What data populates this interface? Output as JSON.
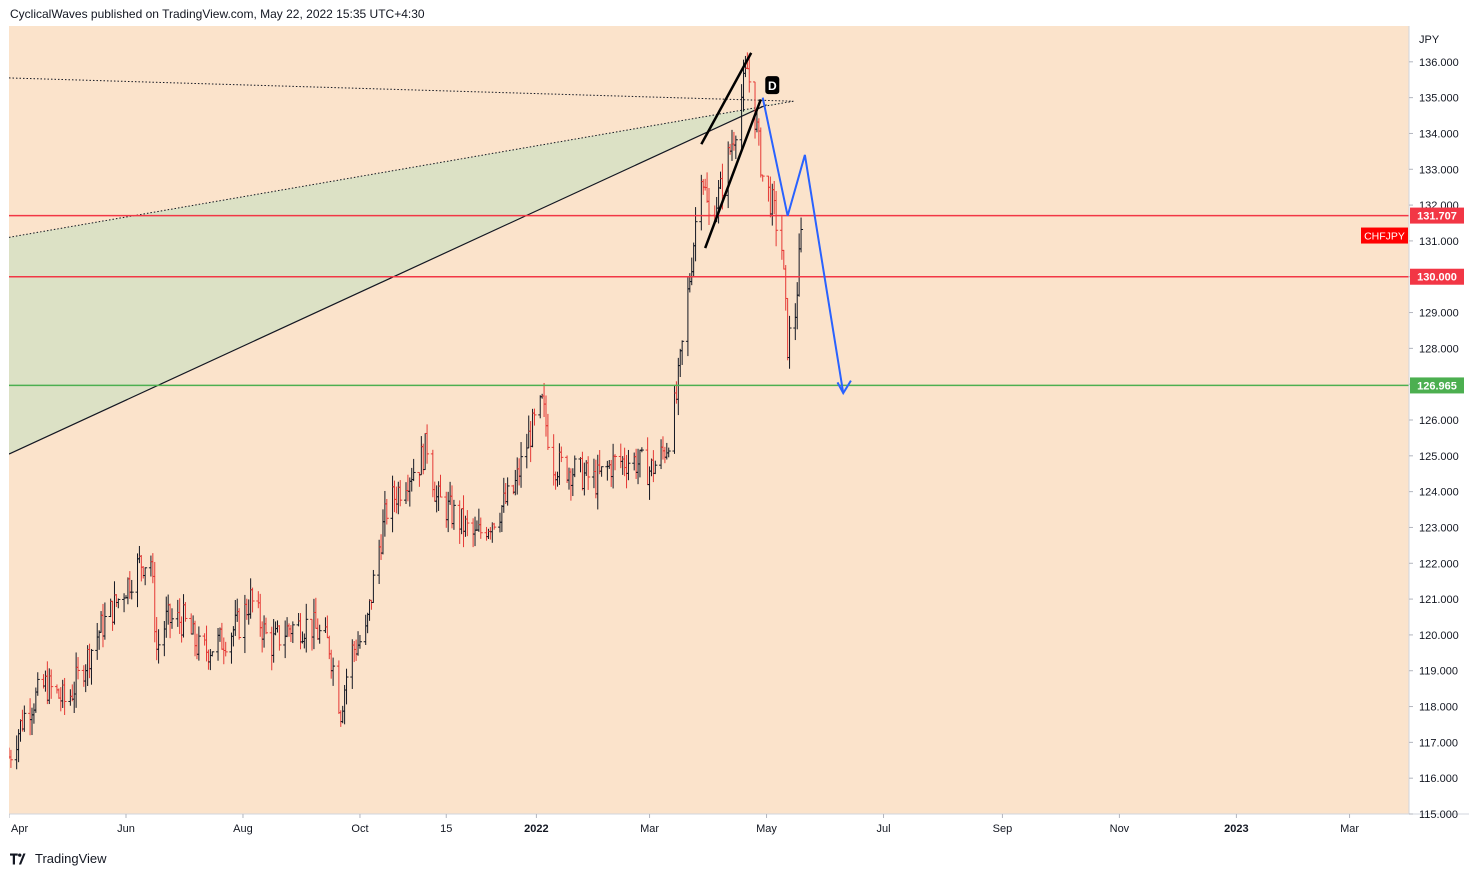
{
  "header": {
    "publisher": "CyclicalWaves published on TradingView.com, May 22, 2022 15:35 UTC+4:30"
  },
  "footer": {
    "brand": "TradingView",
    "logo_icon": "tradingview-logo-icon"
  },
  "colors": {
    "background": "#fbe3cb",
    "candle_up": "#131722",
    "candle_down": "#e53935",
    "resistance": "#f23645",
    "support": "#4caf50",
    "projection": "#2962ff",
    "wedge_fill": "#d8e0c4",
    "symbol_badge": "#ff0000"
  },
  "chart_data": {
    "type": "ohlc",
    "symbol": "CHFJPY",
    "currency": "JPY",
    "y_range": [
      115,
      137
    ],
    "y_ticks": [
      "136.000",
      "135.000",
      "134.000",
      "133.000",
      "132.000",
      "131.000",
      "130.000",
      "129.000",
      "128.000",
      "127.000",
      "126.000",
      "125.000",
      "124.000",
      "123.000",
      "122.000",
      "121.000",
      "120.000",
      "119.000",
      "118.000",
      "117.000",
      "116.000",
      "115.000"
    ],
    "x_range": [
      "2021-04-01",
      "2023-04-01"
    ],
    "x_ticks": [
      {
        "label": "Apr",
        "date": "2021-04-01",
        "bold": false
      },
      {
        "label": "Jun",
        "date": "2021-06-01",
        "bold": false
      },
      {
        "label": "Aug",
        "date": "2021-08-01",
        "bold": false
      },
      {
        "label": "Oct",
        "date": "2021-10-01",
        "bold": false
      },
      {
        "label": "15",
        "date": "2021-11-15",
        "bold": false
      },
      {
        "label": "2022",
        "date": "2022-01-01",
        "bold": true
      },
      {
        "label": "Mar",
        "date": "2022-03-01",
        "bold": false
      },
      {
        "label": "May",
        "date": "2022-05-01",
        "bold": false
      },
      {
        "label": "Jul",
        "date": "2022-07-01",
        "bold": false
      },
      {
        "label": "Sep",
        "date": "2022-09-01",
        "bold": false
      },
      {
        "label": "Nov",
        "date": "2022-11-01",
        "bold": false
      },
      {
        "label": "2023",
        "date": "2023-01-01",
        "bold": true
      },
      {
        "label": "Mar",
        "date": "2023-03-01",
        "bold": false
      }
    ],
    "close_path": [
      [
        "2021-04-01",
        116.6
      ],
      [
        "2021-04-10",
        117.9
      ],
      [
        "2021-04-20",
        118.6
      ],
      [
        "2021-05-01",
        118.1
      ],
      [
        "2021-05-08",
        118.9
      ],
      [
        "2021-05-18",
        120.1
      ],
      [
        "2021-05-28",
        121.0
      ],
      [
        "2021-06-08",
        122.0
      ],
      [
        "2021-06-14",
        122.1
      ],
      [
        "2021-06-17",
        119.6
      ],
      [
        "2021-06-22",
        120.4
      ],
      [
        "2021-07-01",
        120.4
      ],
      [
        "2021-07-10",
        119.5
      ],
      [
        "2021-07-20",
        119.8
      ],
      [
        "2021-07-30",
        120.3
      ],
      [
        "2021-08-05",
        121.0
      ],
      [
        "2021-08-15",
        119.7
      ],
      [
        "2021-08-25",
        120.2
      ],
      [
        "2021-09-05",
        120.3
      ],
      [
        "2021-09-15",
        119.7
      ],
      [
        "2021-09-21",
        117.9
      ],
      [
        "2021-09-26",
        119.5
      ],
      [
        "2021-10-04",
        120.0
      ],
      [
        "2021-10-10",
        122.2
      ],
      [
        "2021-10-15",
        123.5
      ],
      [
        "2021-10-25",
        124.4
      ],
      [
        "2021-11-01",
        124.8
      ],
      [
        "2021-11-05",
        125.3
      ],
      [
        "2021-11-10",
        123.8
      ],
      [
        "2021-11-20",
        123.3
      ],
      [
        "2021-11-30",
        122.7
      ],
      [
        "2021-12-10",
        123.3
      ],
      [
        "2021-12-20",
        124.0
      ],
      [
        "2021-12-28",
        125.5
      ],
      [
        "2022-01-04",
        126.4
      ],
      [
        "2022-01-10",
        124.8
      ],
      [
        "2022-01-20",
        124.6
      ],
      [
        "2022-02-01",
        124.3
      ],
      [
        "2022-02-10",
        124.8
      ],
      [
        "2022-02-20",
        124.9
      ],
      [
        "2022-03-01",
        124.6
      ],
      [
        "2022-03-05",
        124.8
      ],
      [
        "2022-03-10",
        125.3
      ],
      [
        "2022-03-15",
        126.6
      ],
      [
        "2022-03-20",
        129.0
      ],
      [
        "2022-03-24",
        131.0
      ],
      [
        "2022-03-28",
        133.1
      ],
      [
        "2022-04-01",
        131.6
      ],
      [
        "2022-04-07",
        132.4
      ],
      [
        "2022-04-14",
        134.0
      ],
      [
        "2022-04-21",
        135.8
      ],
      [
        "2022-04-25",
        134.5
      ],
      [
        "2022-04-29",
        132.8
      ],
      [
        "2022-05-04",
        132.0
      ],
      [
        "2022-05-09",
        130.8
      ],
      [
        "2022-05-12",
        128.1
      ],
      [
        "2022-05-16",
        129.0
      ],
      [
        "2022-05-19",
        131.1
      ]
    ],
    "price_lines": [
      {
        "name": "resistance-upper",
        "value": 131.707,
        "label": "131.707",
        "color": "#f23645"
      },
      {
        "name": "resistance-lower",
        "value": 130.0,
        "label": "130.000",
        "color": "#f23645"
      },
      {
        "name": "support",
        "value": 126.965,
        "label": "126.965",
        "color": "#4caf50"
      }
    ],
    "symbol_label": {
      "text": "CHFJPY",
      "value": 131.15
    },
    "pattern_label": {
      "text": "D",
      "date": "2022-05-04",
      "value": 135.35
    },
    "wedge": {
      "lower_line": [
        [
          "2021-04-01",
          125.05
        ],
        [
          "2022-05-01",
          134.8
        ]
      ],
      "upper_line": [
        [
          "2021-04-01",
          131.1
        ],
        [
          "2022-05-15",
          134.9
        ]
      ],
      "top_line": [
        [
          "2021-04-01",
          135.55
        ],
        [
          "2022-05-15",
          134.9
        ]
      ]
    },
    "flag": [
      [
        [
          "2022-03-28",
          133.7
        ],
        [
          "2022-04-23",
          136.25
        ]
      ],
      [
        [
          "2022-03-30",
          130.8
        ],
        [
          "2022-04-28",
          134.95
        ]
      ]
    ],
    "projection": [
      [
        "2022-04-29",
        135.0
      ],
      [
        "2022-05-12",
        131.7
      ],
      [
        "2022-05-21",
        133.4
      ],
      [
        "2022-06-10",
        126.75
      ]
    ],
    "projection_arrow": [
      [
        "2022-06-07",
        127.05
      ],
      [
        "2022-06-10",
        126.75
      ],
      [
        "2022-06-14",
        127.1
      ]
    ]
  }
}
